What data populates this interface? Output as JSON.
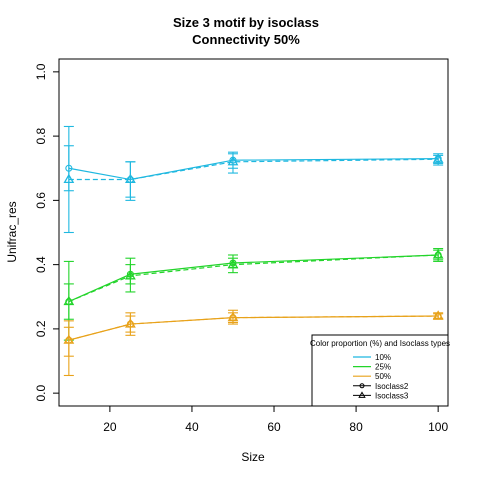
{
  "chart_data": {
    "type": "line",
    "title": "Size 3 motif by isoclass",
    "subtitle": "Connectivity 50%",
    "xlabel": "Size",
    "ylabel": "Unifrac_res",
    "xlim": [
      7.6,
      102.4
    ],
    "ylim": [
      -0.04,
      1.04
    ],
    "xticks": [
      20,
      40,
      60,
      80,
      100
    ],
    "yticks": [
      0.0,
      0.2,
      0.4,
      0.6,
      0.8,
      1.0
    ],
    "grid": false,
    "legend": {
      "title": "Color proportion (%) and Isoclass types",
      "position": "bottom-right",
      "entries": [
        {
          "label": "10%",
          "color": "#1fb8e0",
          "kind": "color"
        },
        {
          "label": "25%",
          "color": "#22d42a",
          "kind": "color"
        },
        {
          "label": "50%",
          "color": "#e8a21a",
          "kind": "color"
        },
        {
          "label": "Isoclass2",
          "color": "#000000",
          "kind": "isoclass2"
        },
        {
          "label": "Isoclass3",
          "color": "#000000",
          "kind": "isoclass3"
        }
      ]
    },
    "x": [
      10,
      25,
      50,
      100
    ],
    "series": [
      {
        "name": "10% Isoclass2",
        "color": "#1fb8e0",
        "marker": "circle",
        "dash": false,
        "y": [
          0.7,
          0.665,
          0.725,
          0.73
        ],
        "lo": [
          0.63,
          0.61,
          0.7,
          0.715
        ],
        "hi": [
          0.77,
          0.72,
          0.75,
          0.745
        ]
      },
      {
        "name": "10% Isoclass3",
        "color": "#1fb8e0",
        "marker": "triangle",
        "dash": true,
        "y": [
          0.665,
          0.665,
          0.72,
          0.728
        ],
        "lo": [
          0.5,
          0.6,
          0.685,
          0.71
        ],
        "hi": [
          0.83,
          0.72,
          0.745,
          0.74
        ]
      },
      {
        "name": "25% Isoclass2",
        "color": "#22d42a",
        "marker": "circle",
        "dash": false,
        "y": [
          0.285,
          0.37,
          0.405,
          0.43
        ],
        "lo": [
          0.23,
          0.34,
          0.39,
          0.415
        ],
        "hi": [
          0.34,
          0.4,
          0.42,
          0.445
        ]
      },
      {
        "name": "25% Isoclass3",
        "color": "#22d42a",
        "marker": "triangle",
        "dash": true,
        "y": [
          0.285,
          0.365,
          0.4,
          0.43
        ],
        "lo": [
          0.165,
          0.315,
          0.375,
          0.41
        ],
        "hi": [
          0.41,
          0.42,
          0.43,
          0.45
        ]
      },
      {
        "name": "50% Isoclass2",
        "color": "#e8a21a",
        "marker": "circle",
        "dash": false,
        "y": [
          0.165,
          0.215,
          0.235,
          0.24
        ],
        "lo": [
          0.115,
          0.19,
          0.22,
          0.233
        ],
        "hi": [
          0.205,
          0.24,
          0.25,
          0.247
        ]
      },
      {
        "name": "50% Isoclass3",
        "color": "#e8a21a",
        "marker": "triangle",
        "dash": true,
        "y": [
          0.165,
          0.215,
          0.235,
          0.24
        ],
        "lo": [
          0.055,
          0.18,
          0.215,
          0.23
        ],
        "hi": [
          0.225,
          0.25,
          0.258,
          0.25
        ]
      }
    ]
  }
}
